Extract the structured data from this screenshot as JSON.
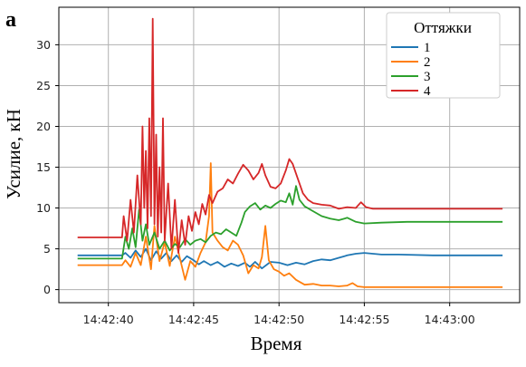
{
  "chart_data": {
    "type": "line",
    "panel_label": "a",
    "title": "",
    "xlabel": "Время",
    "ylabel": "Усилие, кН",
    "x_tick_labels": [
      "14:42:40",
      "14:42:45",
      "14:42:50",
      "14:42:55",
      "14:43:00"
    ],
    "x_tick_values": [
      40,
      45,
      50,
      55,
      60
    ],
    "xlim": [
      37.1,
      64.1
    ],
    "ylim": [
      -1.6,
      34.6
    ],
    "y_ticks": [
      0,
      5,
      10,
      15,
      20,
      25,
      30
    ],
    "grid": true,
    "legend_title": "Оттяжки",
    "legend_position": "top-right",
    "series": [
      {
        "name": "1",
        "color": "#1f77b4",
        "points": [
          [
            38.2,
            4.2
          ],
          [
            40.8,
            4.2
          ],
          [
            41.0,
            4.5
          ],
          [
            41.3,
            3.9
          ],
          [
            41.6,
            4.8
          ],
          [
            41.9,
            4.0
          ],
          [
            42.2,
            5.0
          ],
          [
            42.5,
            3.6
          ],
          [
            42.8,
            4.7
          ],
          [
            43.1,
            3.8
          ],
          [
            43.4,
            4.5
          ],
          [
            43.7,
            3.5
          ],
          [
            44.0,
            4.2
          ],
          [
            44.3,
            3.4
          ],
          [
            44.6,
            4.1
          ],
          [
            45.0,
            3.6
          ],
          [
            45.3,
            3.1
          ],
          [
            45.6,
            3.5
          ],
          [
            46.0,
            3.0
          ],
          [
            46.4,
            3.4
          ],
          [
            46.8,
            2.8
          ],
          [
            47.2,
            3.2
          ],
          [
            47.6,
            2.9
          ],
          [
            48.0,
            3.3
          ],
          [
            48.3,
            2.8
          ],
          [
            48.6,
            3.4
          ],
          [
            49.0,
            2.6
          ],
          [
            49.5,
            3.4
          ],
          [
            50.0,
            3.3
          ],
          [
            50.5,
            3.0
          ],
          [
            51.0,
            3.3
          ],
          [
            51.5,
            3.1
          ],
          [
            52.0,
            3.5
          ],
          [
            52.5,
            3.7
          ],
          [
            53.0,
            3.6
          ],
          [
            53.5,
            3.9
          ],
          [
            54.0,
            4.2
          ],
          [
            54.5,
            4.4
          ],
          [
            55.0,
            4.5
          ],
          [
            55.5,
            4.4
          ],
          [
            56.0,
            4.3
          ],
          [
            57.0,
            4.3
          ],
          [
            59.0,
            4.2
          ],
          [
            61.0,
            4.2
          ],
          [
            63.1,
            4.2
          ]
        ]
      },
      {
        "name": "2",
        "color": "#ff7f0e",
        "points": [
          [
            38.2,
            3.0
          ],
          [
            40.8,
            3.0
          ],
          [
            41.0,
            3.6
          ],
          [
            41.3,
            2.8
          ],
          [
            41.6,
            4.5
          ],
          [
            41.9,
            3.0
          ],
          [
            42.2,
            6.5
          ],
          [
            42.5,
            2.5
          ],
          [
            42.7,
            7.8
          ],
          [
            43.0,
            3.5
          ],
          [
            43.3,
            5.8
          ],
          [
            43.6,
            2.9
          ],
          [
            43.9,
            6.5
          ],
          [
            44.2,
            3.8
          ],
          [
            44.5,
            1.2
          ],
          [
            44.8,
            3.5
          ],
          [
            45.1,
            2.8
          ],
          [
            45.4,
            4.5
          ],
          [
            45.7,
            5.8
          ],
          [
            45.9,
            9.0
          ],
          [
            46.0,
            15.5
          ],
          [
            46.1,
            7.0
          ],
          [
            46.4,
            6.0
          ],
          [
            46.7,
            5.2
          ],
          [
            47.0,
            4.8
          ],
          [
            47.3,
            6.0
          ],
          [
            47.6,
            5.5
          ],
          [
            47.9,
            4.2
          ],
          [
            48.2,
            2.0
          ],
          [
            48.5,
            3.0
          ],
          [
            48.8,
            2.6
          ],
          [
            49.0,
            4.0
          ],
          [
            49.2,
            7.8
          ],
          [
            49.4,
            3.6
          ],
          [
            49.7,
            2.5
          ],
          [
            50.0,
            2.2
          ],
          [
            50.3,
            1.7
          ],
          [
            50.6,
            2.0
          ],
          [
            51.0,
            1.2
          ],
          [
            51.5,
            0.6
          ],
          [
            52.0,
            0.7
          ],
          [
            52.5,
            0.5
          ],
          [
            53.0,
            0.5
          ],
          [
            53.5,
            0.4
          ],
          [
            54.0,
            0.5
          ],
          [
            54.3,
            0.8
          ],
          [
            54.6,
            0.4
          ],
          [
            55.0,
            0.3
          ],
          [
            56.0,
            0.3
          ],
          [
            58.0,
            0.3
          ],
          [
            60.0,
            0.3
          ],
          [
            63.1,
            0.3
          ]
        ]
      },
      {
        "name": "3",
        "color": "#2ca02c",
        "points": [
          [
            38.2,
            3.8
          ],
          [
            40.8,
            3.8
          ],
          [
            41.0,
            6.5
          ],
          [
            41.2,
            5.0
          ],
          [
            41.4,
            7.5
          ],
          [
            41.6,
            5.2
          ],
          [
            41.8,
            9.8
          ],
          [
            42.0,
            6.0
          ],
          [
            42.2,
            8.0
          ],
          [
            42.4,
            5.5
          ],
          [
            42.7,
            7.0
          ],
          [
            43.0,
            5.0
          ],
          [
            43.3,
            6.0
          ],
          [
            43.6,
            4.8
          ],
          [
            43.9,
            5.6
          ],
          [
            44.2,
            5.2
          ],
          [
            44.5,
            6.2
          ],
          [
            44.8,
            5.5
          ],
          [
            45.1,
            6.0
          ],
          [
            45.4,
            6.2
          ],
          [
            45.7,
            5.8
          ],
          [
            46.0,
            6.6
          ],
          [
            46.3,
            7.0
          ],
          [
            46.6,
            6.8
          ],
          [
            46.9,
            7.4
          ],
          [
            47.2,
            7.0
          ],
          [
            47.5,
            6.6
          ],
          [
            47.8,
            8.2
          ],
          [
            48.0,
            9.5
          ],
          [
            48.3,
            10.2
          ],
          [
            48.6,
            10.6
          ],
          [
            48.9,
            9.8
          ],
          [
            49.2,
            10.3
          ],
          [
            49.5,
            10.0
          ],
          [
            49.8,
            10.5
          ],
          [
            50.1,
            10.9
          ],
          [
            50.4,
            10.7
          ],
          [
            50.6,
            11.8
          ],
          [
            50.8,
            10.4
          ],
          [
            51.0,
            12.7
          ],
          [
            51.2,
            11.0
          ],
          [
            51.5,
            10.2
          ],
          [
            52.0,
            9.6
          ],
          [
            52.5,
            9.0
          ],
          [
            53.0,
            8.7
          ],
          [
            53.5,
            8.5
          ],
          [
            54.0,
            8.8
          ],
          [
            54.5,
            8.3
          ],
          [
            55.0,
            8.1
          ],
          [
            56.0,
            8.2
          ],
          [
            57.5,
            8.3
          ],
          [
            60.0,
            8.3
          ],
          [
            63.1,
            8.3
          ]
        ]
      },
      {
        "name": "4",
        "color": "#d62728",
        "points": [
          [
            38.2,
            6.4
          ],
          [
            40.8,
            6.4
          ],
          [
            40.9,
            9.0
          ],
          [
            41.1,
            6.0
          ],
          [
            41.3,
            11.0
          ],
          [
            41.5,
            7.0
          ],
          [
            41.7,
            14.0
          ],
          [
            41.9,
            8.0
          ],
          [
            42.0,
            20.0
          ],
          [
            42.1,
            10.0
          ],
          [
            42.2,
            17.0
          ],
          [
            42.3,
            7.5
          ],
          [
            42.4,
            21.0
          ],
          [
            42.5,
            9.0
          ],
          [
            42.6,
            33.2
          ],
          [
            42.7,
            8.0
          ],
          [
            42.8,
            19.0
          ],
          [
            42.9,
            6.5
          ],
          [
            43.0,
            15.0
          ],
          [
            43.1,
            7.0
          ],
          [
            43.2,
            21.0
          ],
          [
            43.3,
            6.0
          ],
          [
            43.5,
            13.0
          ],
          [
            43.7,
            5.0
          ],
          [
            43.9,
            11.0
          ],
          [
            44.1,
            4.5
          ],
          [
            44.3,
            8.5
          ],
          [
            44.5,
            5.5
          ],
          [
            44.7,
            9.0
          ],
          [
            44.9,
            7.2
          ],
          [
            45.1,
            9.5
          ],
          [
            45.3,
            8.0
          ],
          [
            45.5,
            10.5
          ],
          [
            45.7,
            9.2
          ],
          [
            45.9,
            11.6
          ],
          [
            46.1,
            10.6
          ],
          [
            46.4,
            12.0
          ],
          [
            46.7,
            12.4
          ],
          [
            47.0,
            13.5
          ],
          [
            47.3,
            13.0
          ],
          [
            47.6,
            14.2
          ],
          [
            47.9,
            15.3
          ],
          [
            48.2,
            14.6
          ],
          [
            48.5,
            13.5
          ],
          [
            48.8,
            14.3
          ],
          [
            49.0,
            15.4
          ],
          [
            49.2,
            14.0
          ],
          [
            49.5,
            12.6
          ],
          [
            49.8,
            12.4
          ],
          [
            50.1,
            13.0
          ],
          [
            50.4,
            14.6
          ],
          [
            50.6,
            16.0
          ],
          [
            50.8,
            15.4
          ],
          [
            51.1,
            13.6
          ],
          [
            51.4,
            11.8
          ],
          [
            51.7,
            11.0
          ],
          [
            52.0,
            10.6
          ],
          [
            52.5,
            10.4
          ],
          [
            53.0,
            10.3
          ],
          [
            53.5,
            9.9
          ],
          [
            54.0,
            10.1
          ],
          [
            54.5,
            10.0
          ],
          [
            54.8,
            10.7
          ],
          [
            55.1,
            10.1
          ],
          [
            55.5,
            9.9
          ],
          [
            57.0,
            9.9
          ],
          [
            60.0,
            9.9
          ],
          [
            63.1,
            9.9
          ]
        ]
      }
    ]
  }
}
